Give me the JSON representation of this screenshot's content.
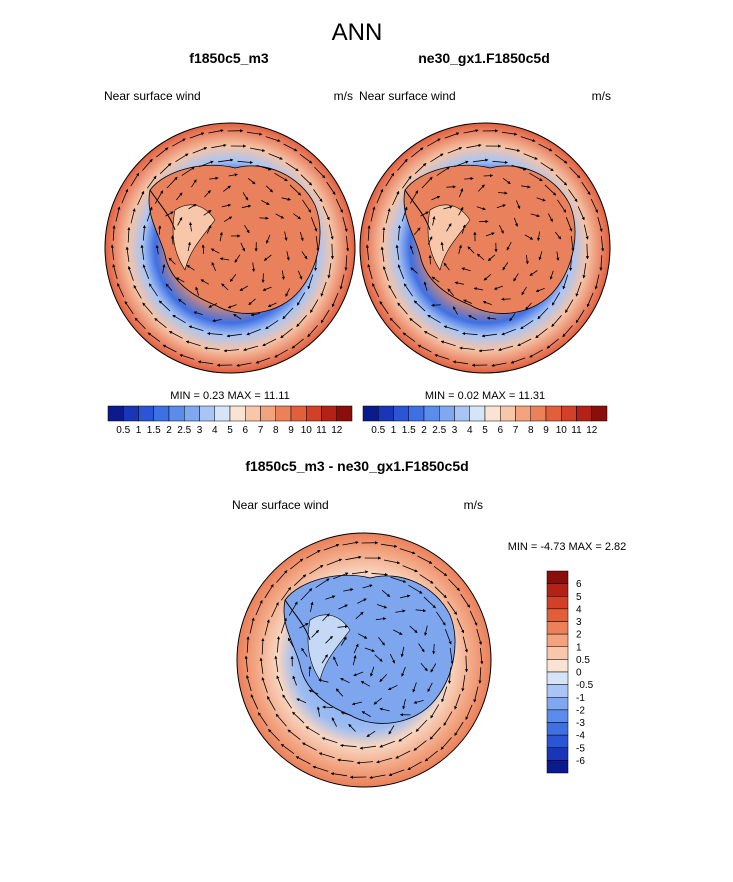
{
  "figure_title": "ANN",
  "chart_data": [
    {
      "type": "heatmap",
      "subtype": "polar-stereographic vector wind map (Antarctica)",
      "title": "f1850c5_m3",
      "left_label": "Near surface wind",
      "right_label": "m/s",
      "stats_text": "MIN =   0.23 MAX =  11.11",
      "min": 0.23,
      "max": 11.11,
      "colorbar": {
        "orientation": "horizontal",
        "levels": [
          "0.5",
          "1",
          "1.5",
          "2",
          "2.5",
          "3",
          "4",
          "5",
          "6",
          "7",
          "8",
          "9",
          "10",
          "11",
          "12"
        ],
        "colors": [
          "#0b1a8c",
          "#1a36b8",
          "#2a55d6",
          "#3f70e3",
          "#5a8cec",
          "#7fa8f1",
          "#a9c5f5",
          "#d6e4f8",
          "#fbe3d4",
          "#f8c6a8",
          "#f3a47f",
          "#ec8058",
          "#e35f3a",
          "#d24127",
          "#b32216",
          "#8a0e0c"
        ]
      }
    },
    {
      "type": "heatmap",
      "subtype": "polar-stereographic vector wind map (Antarctica)",
      "title": "ne30_gx1.F1850c5d",
      "left_label": "Near surface wind",
      "right_label": "m/s",
      "stats_text": "MIN =   0.02 MAX =  11.31",
      "min": 0.02,
      "max": 11.31,
      "colorbar": {
        "orientation": "horizontal",
        "levels": [
          "0.5",
          "1",
          "1.5",
          "2",
          "2.5",
          "3",
          "4",
          "5",
          "6",
          "7",
          "8",
          "9",
          "10",
          "11",
          "12"
        ],
        "colors": [
          "#0b1a8c",
          "#1a36b8",
          "#2a55d6",
          "#3f70e3",
          "#5a8cec",
          "#7fa8f1",
          "#a9c5f5",
          "#d6e4f8",
          "#fbe3d4",
          "#f8c6a8",
          "#f3a47f",
          "#ec8058",
          "#e35f3a",
          "#d24127",
          "#b32216",
          "#8a0e0c"
        ]
      }
    },
    {
      "type": "heatmap",
      "subtype": "polar-stereographic vector wind difference map (Antarctica)",
      "title": "f1850c5_m3 - ne30_gx1.F1850c5d",
      "left_label": "Near surface wind",
      "right_label": "m/s",
      "stats_text": "MIN =  -4.73 MAX =   2.82",
      "min": -4.73,
      "max": 2.82,
      "colorbar": {
        "orientation": "vertical",
        "levels": [
          "6",
          "5",
          "4",
          "3",
          "2",
          "1",
          "0.5",
          "0",
          "-0.5",
          "-1",
          "-2",
          "-3",
          "-4",
          "-5",
          "-6"
        ],
        "colors": [
          "#8a0e0c",
          "#b32216",
          "#d24127",
          "#e35f3a",
          "#ec8058",
          "#f3a47f",
          "#f8c6a8",
          "#fbe3d4",
          "#d6e4f8",
          "#a9c5f5",
          "#7fa8f1",
          "#5a8cec",
          "#3f70e3",
          "#2a55d6",
          "#1a36b8",
          "#0b1a8c"
        ]
      }
    }
  ]
}
